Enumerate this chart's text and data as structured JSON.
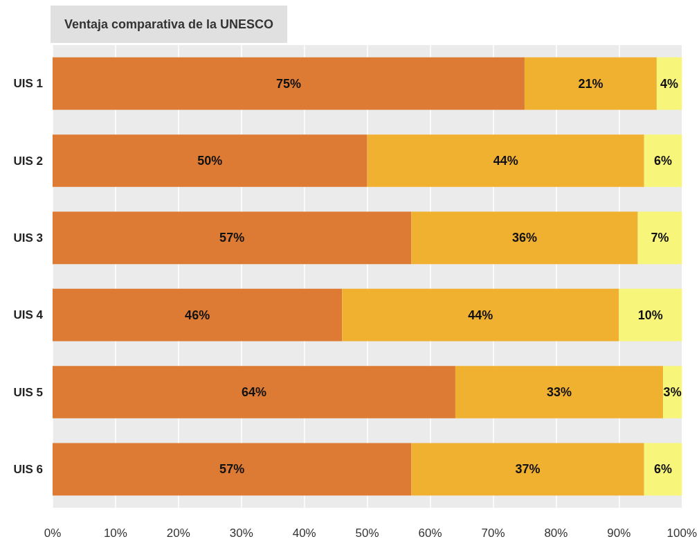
{
  "chart_data": {
    "type": "bar",
    "orientation": "horizontal",
    "stacked": true,
    "title": "Ventaja comparativa de la UNESCO",
    "categories": [
      "UIS 1",
      "UIS 2",
      "UIS 3",
      "UIS 4",
      "UIS 5",
      "UIS 6"
    ],
    "series": [
      {
        "color": "#dd7b35",
        "values": [
          75,
          50,
          57,
          46,
          64,
          57
        ],
        "value_labels": [
          "75%",
          "50%",
          "57%",
          "46%",
          "64%",
          "57%"
        ]
      },
      {
        "color": "#f0b030",
        "values": [
          21,
          44,
          36,
          44,
          33,
          37
        ],
        "value_labels": [
          "21%",
          "44%",
          "36%",
          "44%",
          "33%",
          "37%"
        ]
      },
      {
        "color": "#f7f57a",
        "values": [
          4,
          6,
          7,
          10,
          3,
          6
        ],
        "value_labels": [
          "4%",
          "6%",
          "7%",
          "10%",
          "3%",
          "6%"
        ]
      }
    ],
    "xlim": [
      0,
      100
    ],
    "xticks": [
      {
        "value": 0,
        "label": "0%"
      },
      {
        "value": 10,
        "label": "10%"
      },
      {
        "value": 20,
        "label": "20%"
      },
      {
        "value": 30,
        "label": "30%"
      },
      {
        "value": 40,
        "label": "40%"
      },
      {
        "value": 50,
        "label": "50%"
      },
      {
        "value": 60,
        "label": "60%"
      },
      {
        "value": 70,
        "label": "70%"
      },
      {
        "value": 80,
        "label": "80%"
      },
      {
        "value": 90,
        "label": "90%"
      },
      {
        "value": 100,
        "label": "100%"
      }
    ],
    "grid": "x"
  }
}
